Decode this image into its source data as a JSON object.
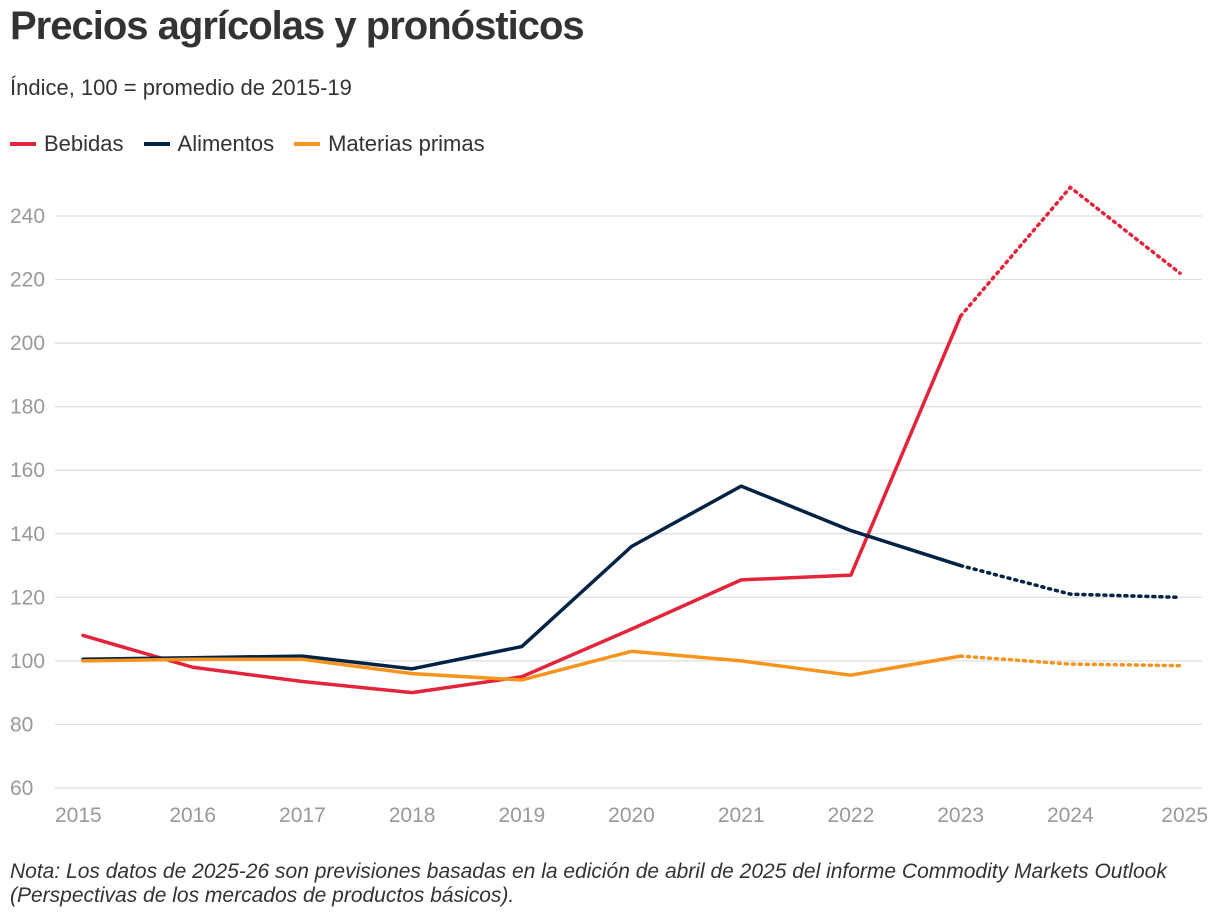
{
  "chart_data": {
    "type": "line",
    "title": "Precios agrícolas y pronósticos",
    "subtitle": "Índice, 100 = promedio de 2015-19",
    "categories": [
      "2015",
      "2016",
      "2017",
      "2018",
      "2019",
      "2020",
      "2021",
      "2022",
      "2023",
      "2024",
      "2025"
    ],
    "forecast_from": "2023",
    "ylim": [
      60,
      250
    ],
    "yticks": [
      60,
      80,
      100,
      120,
      140,
      160,
      180,
      200,
      220,
      240
    ],
    "series": [
      {
        "name": "Bebidas",
        "color": "#e3243b",
        "values": [
          108,
          98,
          93.5,
          90,
          95,
          110,
          125.5,
          127,
          208.5,
          249,
          222
        ]
      },
      {
        "name": "Alimentos",
        "color": "#002244",
        "values": [
          100.5,
          101,
          101.5,
          97.5,
          104.5,
          136,
          155,
          141,
          130,
          121,
          120
        ]
      },
      {
        "name": "Materias primas",
        "color": "#f7941d",
        "values": [
          100,
          100.5,
          100.5,
          96,
          94,
          103,
          100,
          95.5,
          101.5,
          99,
          98.5
        ]
      }
    ],
    "note": "Nota: Los datos de 2025-26 son previsiones basadas en la edición de abril de 2025 del informe Commodity Markets Outlook (Perspectivas de los mercados de productos básicos)."
  }
}
